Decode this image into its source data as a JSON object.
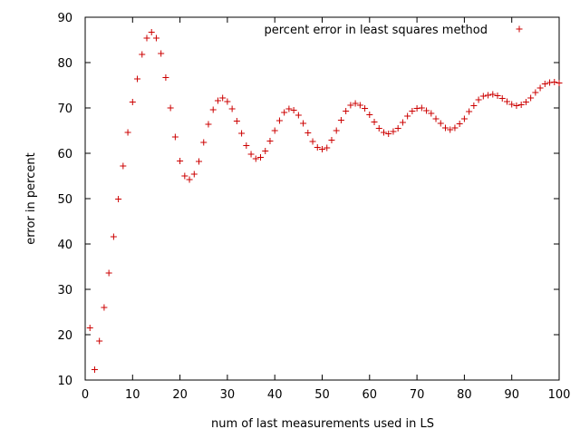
{
  "chart_data": {
    "type": "scatter",
    "title": "",
    "xlabel": "num of last measurements used in LS",
    "ylabel": "error in percent",
    "xlim": [
      0,
      100
    ],
    "ylim": [
      10,
      90
    ],
    "xticks": [
      0,
      10,
      20,
      30,
      40,
      50,
      60,
      70,
      80,
      90,
      100
    ],
    "yticks": [
      10,
      20,
      30,
      40,
      50,
      60,
      70,
      80,
      90
    ],
    "grid": false,
    "legend_position": "top-right",
    "marker": "+",
    "series": [
      {
        "name": "percent error in least squares method",
        "color": "#cc0000",
        "x": [
          1,
          2,
          3,
          4,
          5,
          6,
          7,
          8,
          9,
          10,
          11,
          12,
          13,
          14,
          15,
          16,
          17,
          18,
          19,
          20,
          21,
          22,
          23,
          24,
          25,
          26,
          27,
          28,
          29,
          30,
          31,
          32,
          33,
          34,
          35,
          36,
          37,
          38,
          39,
          40,
          41,
          42,
          43,
          44,
          45,
          46,
          47,
          48,
          49,
          50,
          51,
          52,
          53,
          54,
          55,
          56,
          57,
          58,
          59,
          60,
          61,
          62,
          63,
          64,
          65,
          66,
          67,
          68,
          69,
          70,
          71,
          72,
          73,
          74,
          75,
          76,
          77,
          78,
          79,
          80,
          81,
          82,
          83,
          84,
          85,
          86,
          87,
          88,
          89,
          90,
          91,
          92,
          93,
          94,
          95,
          96,
          97,
          98,
          99,
          100
        ],
        "y": [
          21.5,
          12.3,
          18.6,
          26.0,
          33.6,
          41.6,
          49.9,
          57.2,
          64.6,
          71.3,
          76.4,
          81.8,
          85.4,
          86.7,
          85.4,
          82.0,
          76.7,
          70.0,
          63.6,
          58.3,
          55.0,
          54.2,
          55.4,
          58.2,
          62.4,
          66.4,
          69.6,
          71.6,
          72.2,
          71.4,
          69.8,
          67.1,
          64.4,
          61.7,
          59.8,
          58.8,
          59.1,
          60.5,
          62.7,
          65.0,
          67.2,
          69.0,
          69.8,
          69.5,
          68.4,
          66.6,
          64.5,
          62.6,
          61.3,
          60.9,
          61.2,
          62.9,
          65.0,
          67.3,
          69.3,
          70.6,
          71.0,
          70.6,
          69.9,
          68.5,
          66.9,
          65.5,
          64.6,
          64.3,
          64.8,
          65.5,
          66.8,
          68.2,
          69.3,
          69.9,
          70.0,
          69.4,
          68.8,
          67.6,
          66.6,
          65.6,
          65.2,
          65.6,
          66.5,
          67.6,
          69.2,
          70.5,
          71.8,
          72.6,
          72.8,
          73.0,
          72.7,
          72.1,
          71.4,
          70.8,
          70.5,
          70.7,
          71.3,
          72.2,
          73.4,
          74.4,
          75.3,
          75.6,
          75.7,
          75.5
        ]
      }
    ]
  }
}
